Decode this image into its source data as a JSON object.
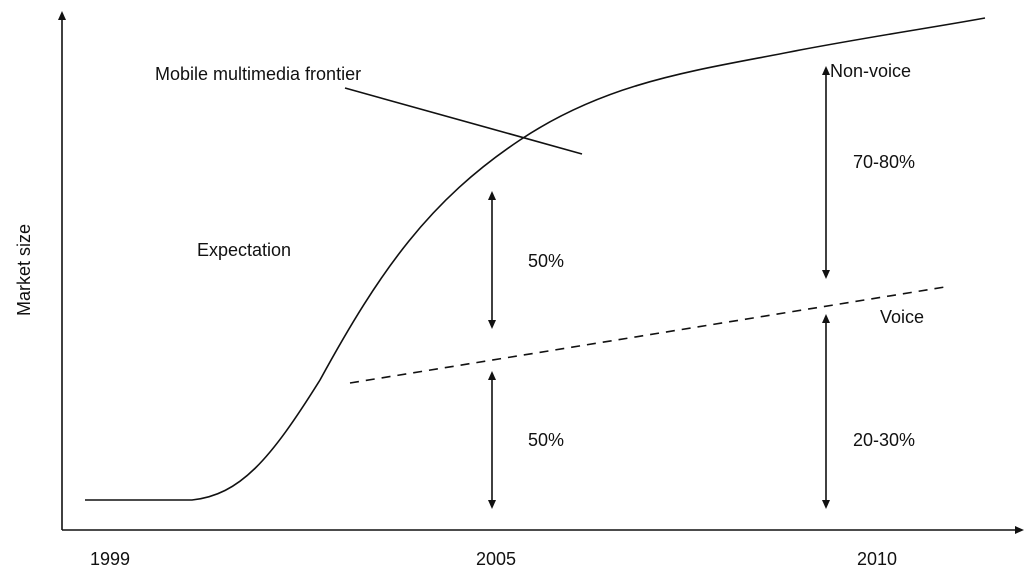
{
  "labels": {
    "frontier": "Mobile multimedia frontier",
    "non_voice": "Non-voice",
    "non_voice_share": "70-80%",
    "expectation": "Expectation",
    "upper_share_2005": "50%",
    "voice": "Voice",
    "lower_share_2005": "50%",
    "voice_share": "20-30%"
  },
  "y_axis": {
    "label": "Market size"
  },
  "x_axis": {
    "labels": [
      "1999",
      "2005",
      "2010"
    ]
  }
}
